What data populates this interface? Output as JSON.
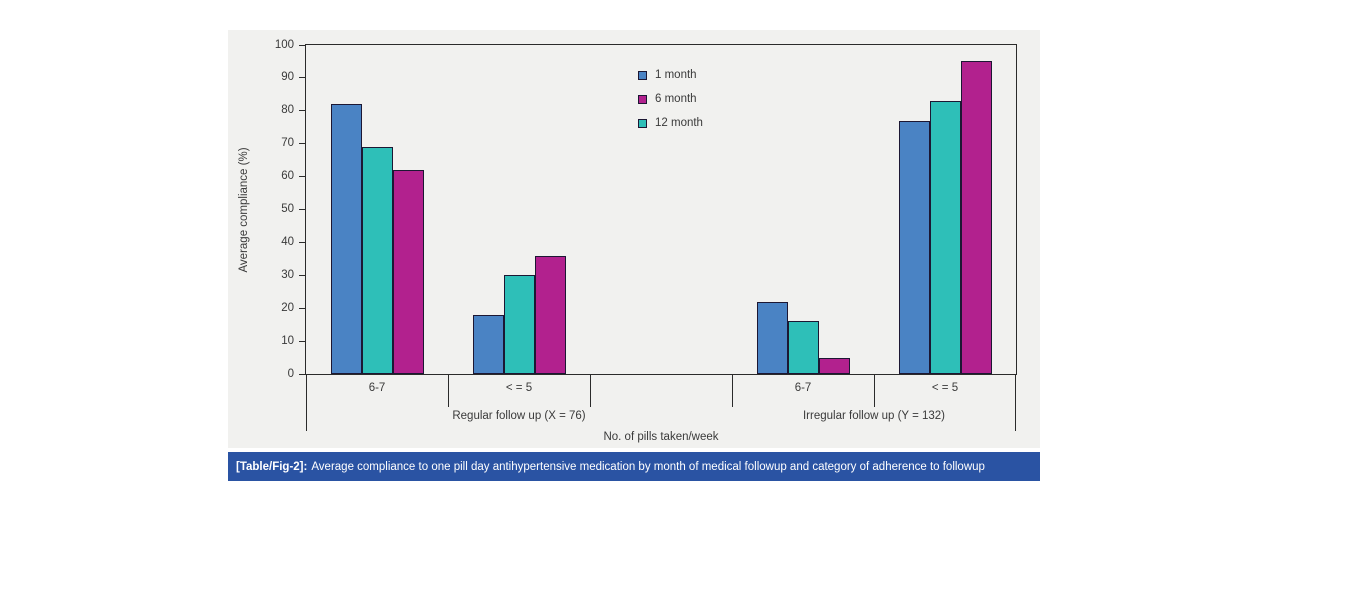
{
  "figure": {
    "caption_tag": "[Table/Fig-2]:",
    "caption_text": "Average compliance to one pill day antihypertensive medication by month of medical followup and category of adherence to followup"
  },
  "chart_data": {
    "type": "bar",
    "title": "",
    "ylabel": "Average compliance (%)",
    "xlabel": "No. of pills taken/week",
    "ylim": [
      0,
      100
    ],
    "yticks": [
      0,
      10,
      20,
      30,
      40,
      50,
      60,
      70,
      80,
      90,
      100
    ],
    "grid": false,
    "legend": {
      "position": "top-center",
      "entries": [
        "1 month",
        "6 month",
        "12 month"
      ]
    },
    "series": [
      {
        "name": "1 month",
        "color": "#4a83c4"
      },
      {
        "name": "6 month",
        "color": "#b2218e"
      },
      {
        "name": "12 month",
        "color": "#2ebfb8"
      }
    ],
    "bar_display_order": [
      "1 month",
      "12 month",
      "6 month"
    ],
    "groups": [
      {
        "label": "Regular follow up (X = 76)",
        "categories": [
          {
            "label": "6-7",
            "values": {
              "1 month": 82,
              "6 month": 62,
              "12 month": 69
            }
          },
          {
            "label": "< = 5",
            "values": {
              "1 month": 18,
              "6 month": 36,
              "12 month": 30
            }
          }
        ]
      },
      {
        "label": "Irregular follow up (Y = 132)",
        "categories": [
          {
            "label": "6-7",
            "values": {
              "1 month": 22,
              "6 month": 5,
              "12 month": 16
            }
          },
          {
            "label": "< = 5",
            "values": {
              "1 month": 77,
              "6 month": 95,
              "12 month": 83
            }
          }
        ]
      }
    ],
    "colors": {
      "bar_border": "#1c1733",
      "axis_line": "#2b2b2b",
      "text": "#3a3a3a",
      "panel_background": "#f1f1ef",
      "caption_background": "#2a53a3",
      "caption_text": "#ffffff"
    }
  }
}
